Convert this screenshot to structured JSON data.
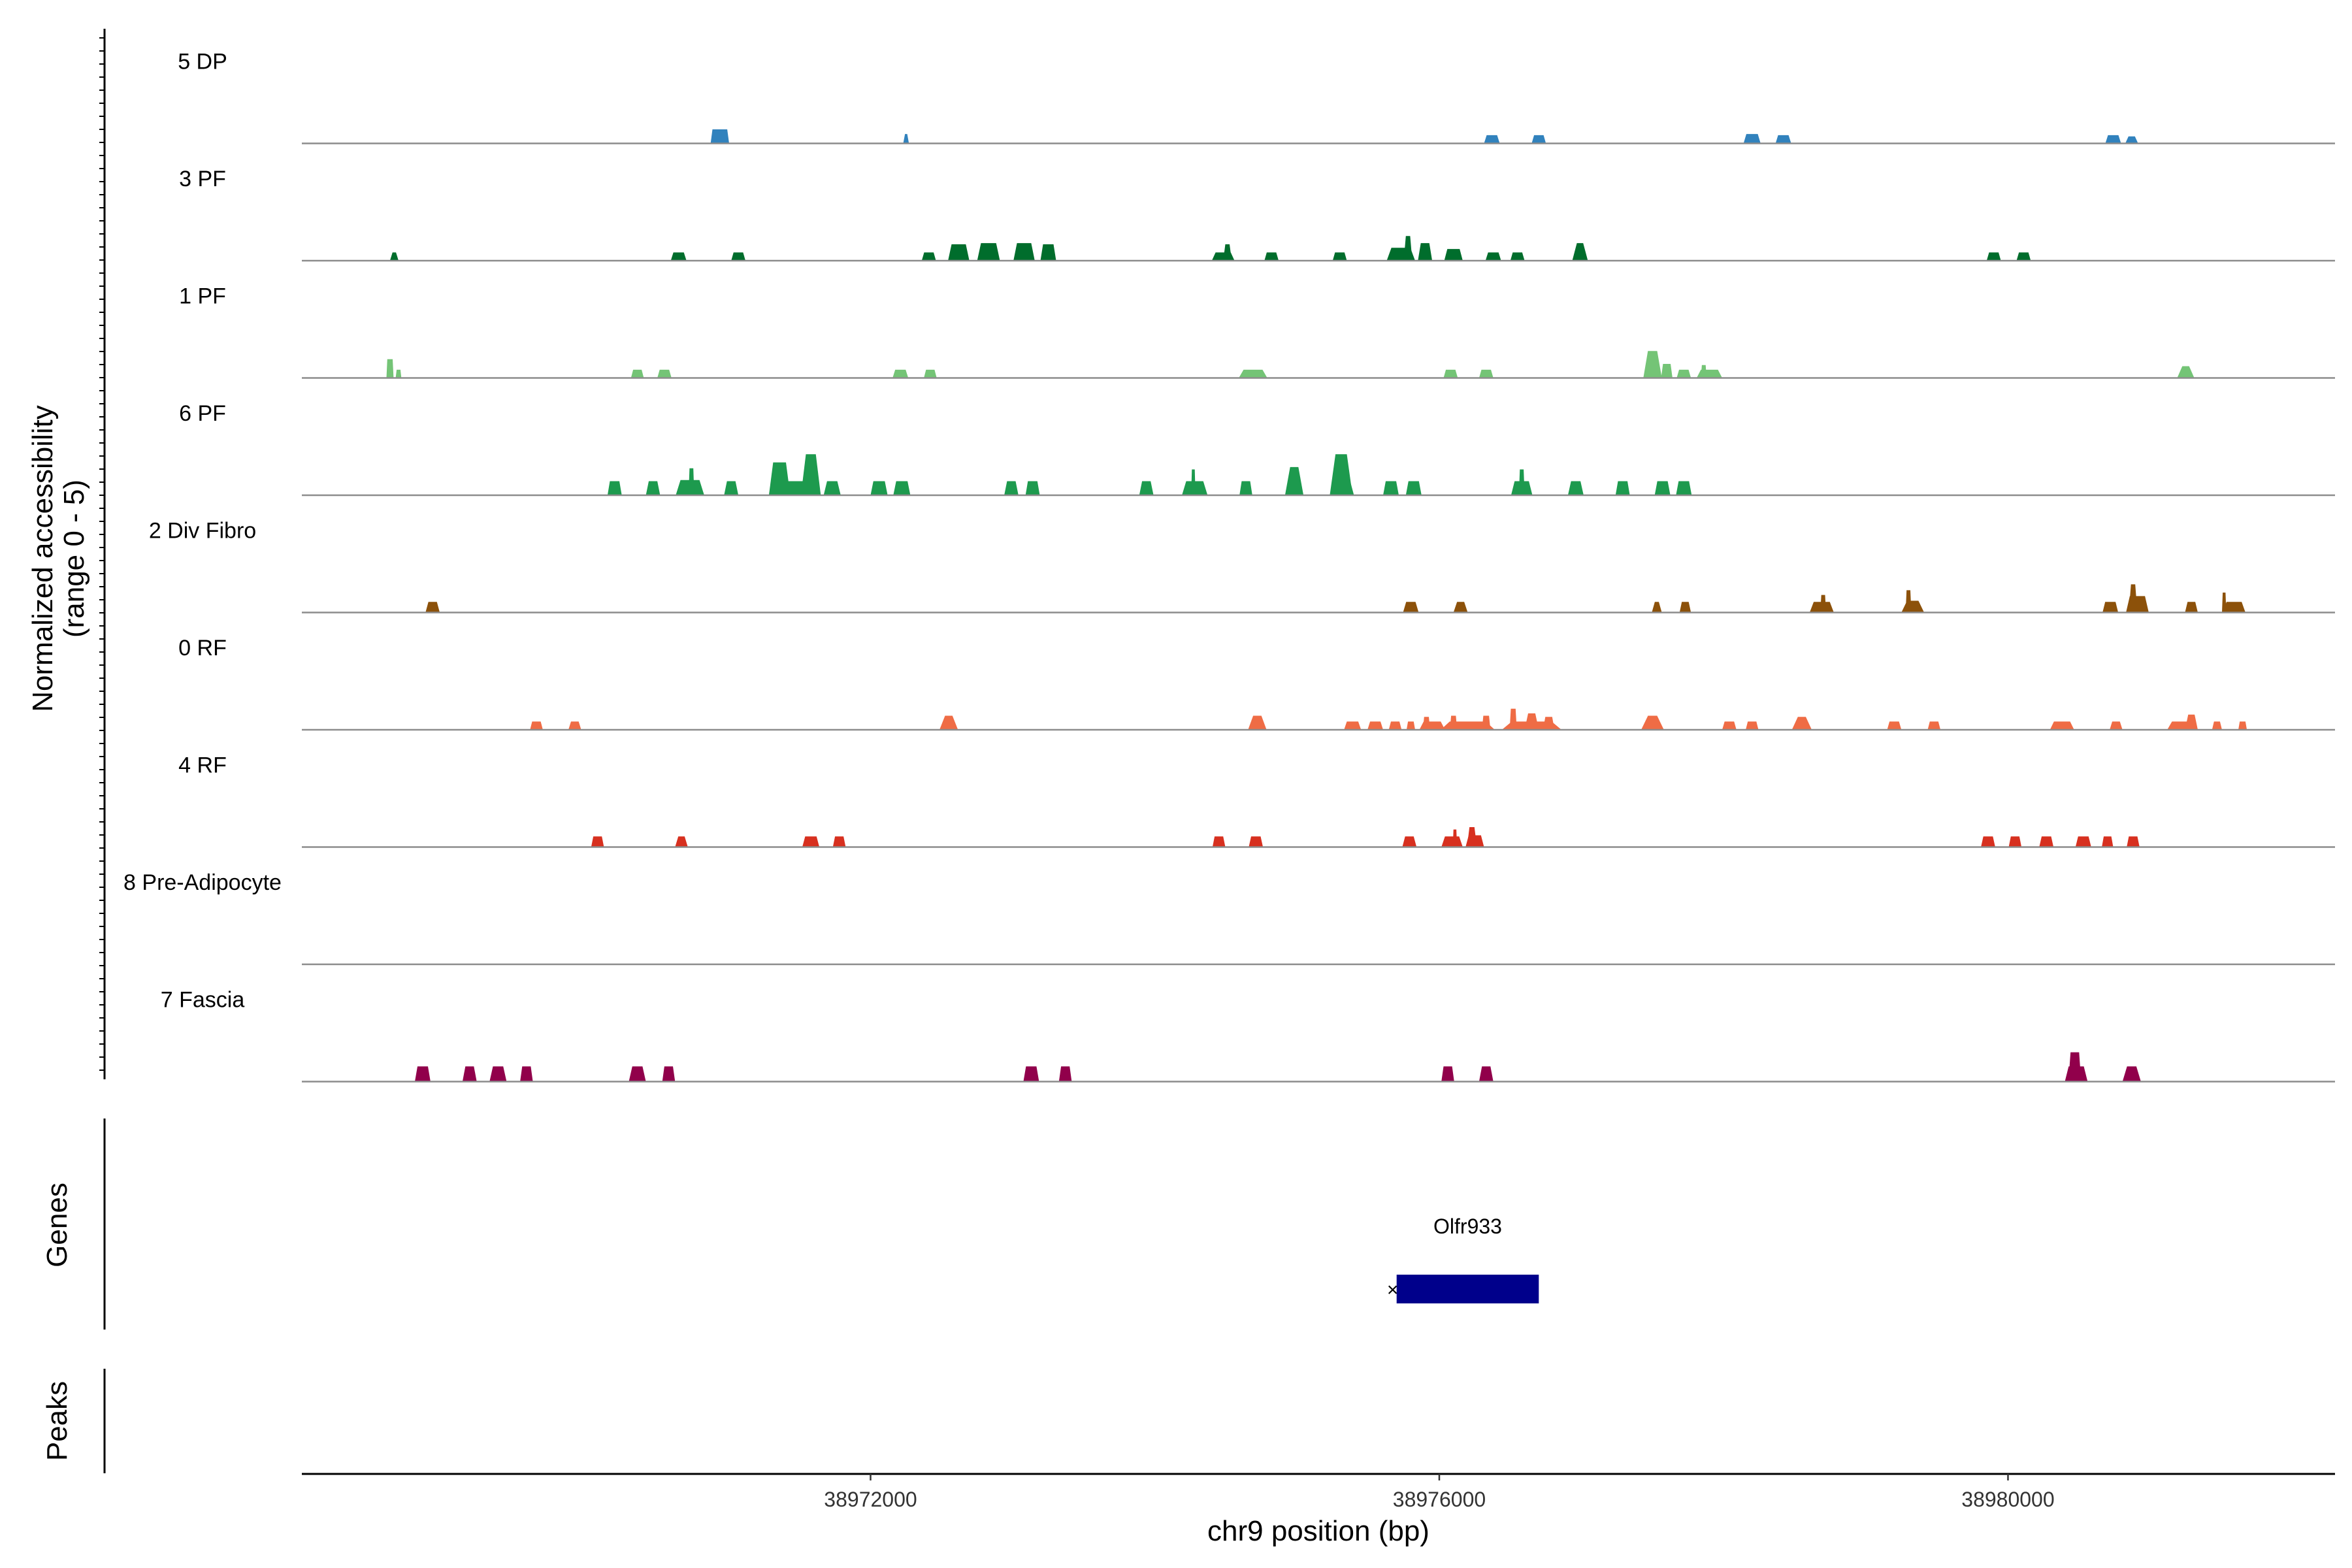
{
  "chart_data": {
    "type": "coverage",
    "x_axis": {
      "label": "chr9 position (bp)",
      "min": 38968000,
      "max": 38982300,
      "ticks": [
        38972000,
        38976000,
        38980000
      ],
      "tick_labels": [
        "38972000",
        "38976000",
        "38980000"
      ]
    },
    "y_axis": {
      "label_line1": "Normalized accessibility",
      "label_line2": "(range 0 - 5)",
      "range": [
        0,
        5
      ]
    },
    "tracks": [
      {
        "name": "5 DP",
        "color": "#3182bd",
        "peaks": [
          [
            38970940,
            130,
            0.6,
            5.0
          ],
          [
            38972250,
            40,
            0.4,
            0.9
          ],
          [
            38976370,
            110,
            0.35,
            3.0
          ],
          [
            38976700,
            100,
            0.35,
            3.0
          ],
          [
            38978200,
            120,
            0.4,
            3.0
          ],
          [
            38978420,
            110,
            0.35,
            3.0
          ],
          [
            38980740,
            110,
            0.35,
            3.0
          ],
          [
            38980870,
            90,
            0.3,
            2.0
          ]
        ]
      },
      {
        "name": "3 PF",
        "color": "#006d2c",
        "peaks": [
          [
            38968650,
            60,
            0.35,
            1.5
          ],
          [
            38970650,
            110,
            0.35,
            3.0
          ],
          [
            38971070,
            100,
            0.35,
            3.0
          ],
          [
            38972410,
            100,
            0.35,
            3.0
          ],
          [
            38972620,
            150,
            0.7,
            3.0
          ],
          [
            38972830,
            160,
            0.75,
            3.0
          ],
          [
            38973080,
            150,
            0.75,
            3.0
          ],
          [
            38973250,
            110,
            0.7,
            3.0
          ],
          [
            38974480,
            160,
            0.35,
            3.0
          ],
          [
            38974510,
            60,
            0.7,
            2.0
          ],
          [
            38974820,
            100,
            0.35,
            3.0
          ],
          [
            38975300,
            100,
            0.35,
            3.0
          ],
          [
            38975730,
            200,
            0.55,
            3.0
          ],
          [
            38975780,
            60,
            1.05,
            2.0
          ],
          [
            38975900,
            100,
            0.75,
            2.5
          ],
          [
            38976100,
            130,
            0.5,
            3.0
          ],
          [
            38976380,
            110,
            0.35,
            3.0
          ],
          [
            38976550,
            100,
            0.35,
            3.0
          ],
          [
            38976990,
            110,
            0.75,
            1.5
          ],
          [
            38979900,
            100,
            0.35,
            3.0
          ],
          [
            38980110,
            100,
            0.35,
            3.0
          ]
        ]
      },
      {
        "name": "1 PF",
        "color": "#74c476",
        "peaks": [
          [
            38968620,
            50,
            0.8,
            4.0
          ],
          [
            38968680,
            40,
            0.35,
            3.0
          ],
          [
            38970360,
            90,
            0.35,
            3.0
          ],
          [
            38970550,
            100,
            0.35,
            3.0
          ],
          [
            38972210,
            110,
            0.35,
            3.0
          ],
          [
            38972420,
            90,
            0.35,
            3.0
          ],
          [
            38974690,
            200,
            0.35,
            3.0
          ],
          [
            38976080,
            100,
            0.35,
            3.0
          ],
          [
            38976330,
            100,
            0.35,
            3.0
          ],
          [
            38977500,
            130,
            1.15,
            2.0
          ],
          [
            38977600,
            80,
            0.6,
            3.0
          ],
          [
            38977720,
            100,
            0.35,
            3.0
          ],
          [
            38977900,
            180,
            0.35,
            3.0
          ],
          [
            38977860,
            40,
            0.55,
            3.0
          ],
          [
            38981250,
            120,
            0.5,
            1.5
          ]
        ]
      },
      {
        "name": "6 PF",
        "color": "#1d9a4e",
        "peaks": [
          [
            38970200,
            100,
            0.6,
            3.0
          ],
          [
            38970470,
            100,
            0.6,
            2.5
          ],
          [
            38970730,
            200,
            0.65,
            3.0
          ],
          [
            38970740,
            40,
            1.15,
            3.0
          ],
          [
            38971020,
            100,
            0.6,
            2.5
          ],
          [
            38971360,
            150,
            1.4,
            2.5
          ],
          [
            38971580,
            140,
            1.75,
            2.0
          ],
          [
            38971480,
            260,
            0.6,
            3.0
          ],
          [
            38971730,
            120,
            0.6,
            2.5
          ],
          [
            38972060,
            120,
            0.6,
            3.0
          ],
          [
            38972220,
            120,
            0.6,
            3.0
          ],
          [
            38972990,
            100,
            0.6,
            2.5
          ],
          [
            38973140,
            100,
            0.6,
            3.0
          ],
          [
            38973940,
            100,
            0.6,
            2.5
          ],
          [
            38974280,
            180,
            0.6,
            3.0
          ],
          [
            38974270,
            30,
            1.1,
            3.0
          ],
          [
            38974640,
            90,
            0.6,
            3.0
          ],
          [
            38974980,
            130,
            1.2,
            1.8
          ],
          [
            38975310,
            160,
            1.75,
            2.0
          ],
          [
            38975320,
            160,
            0.6,
            3.0
          ],
          [
            38975660,
            110,
            0.6,
            3.0
          ],
          [
            38975820,
            110,
            0.6,
            3.0
          ],
          [
            38976580,
            150,
            0.6,
            3.0
          ],
          [
            38976580,
            40,
            1.1,
            3.0
          ],
          [
            38976960,
            110,
            0.6,
            2.5
          ],
          [
            38977290,
            100,
            0.6,
            3.0
          ],
          [
            38977570,
            110,
            0.6,
            3.0
          ],
          [
            38977720,
            110,
            0.6,
            3.0
          ]
        ]
      },
      {
        "name": "2 Div Fibro",
        "color": "#8c510a",
        "peaks": [
          [
            38968920,
            100,
            0.45,
            2.5
          ],
          [
            38975800,
            110,
            0.45,
            2.5
          ],
          [
            38976150,
            100,
            0.45,
            2.0
          ],
          [
            38977530,
            70,
            0.45,
            1.5
          ],
          [
            38977730,
            80,
            0.45,
            2.5
          ],
          [
            38978690,
            170,
            0.45,
            3.0
          ],
          [
            38978700,
            40,
            0.75,
            3.0
          ],
          [
            38979330,
            160,
            0.5,
            2.0
          ],
          [
            38979300,
            40,
            0.95,
            3.0
          ],
          [
            38980720,
            110,
            0.45,
            3.0
          ],
          [
            38980910,
            160,
            0.7,
            3.0
          ],
          [
            38980880,
            60,
            1.2,
            2.0
          ],
          [
            38981290,
            90,
            0.45,
            2.5
          ],
          [
            38981590,
            160,
            0.45,
            3.0
          ],
          [
            38981520,
            30,
            0.85,
            3.0
          ]
        ]
      },
      {
        "name": "0 RF",
        "color": "#ef6c45",
        "peaks": [
          [
            38969650,
            90,
            0.35,
            3.0
          ],
          [
            38969920,
            90,
            0.35,
            2.5
          ],
          [
            38972550,
            130,
            0.6,
            1.5
          ],
          [
            38974720,
            130,
            0.6,
            1.8
          ],
          [
            38975390,
            120,
            0.35,
            3.0
          ],
          [
            38975550,
            110,
            0.35,
            3.0
          ],
          [
            38975690,
            90,
            0.35,
            3.0
          ],
          [
            38975800,
            60,
            0.35,
            3.0
          ],
          [
            38975950,
            180,
            0.35,
            3.0
          ],
          [
            38975910,
            50,
            0.55,
            3.0
          ],
          [
            38976200,
            380,
            0.35,
            3.0
          ],
          [
            38976100,
            50,
            0.6,
            3.0
          ],
          [
            38976330,
            60,
            0.6,
            3.0
          ],
          [
            38976520,
            50,
            0.9,
            3.0
          ],
          [
            38976650,
            420,
            0.35,
            3.0
          ],
          [
            38976650,
            100,
            0.7,
            2.0
          ],
          [
            38976770,
            80,
            0.55,
            2.5
          ],
          [
            38977500,
            160,
            0.6,
            1.5
          ],
          [
            38978040,
            100,
            0.35,
            3.0
          ],
          [
            38978200,
            90,
            0.35,
            3.0
          ],
          [
            38978550,
            140,
            0.55,
            1.5
          ],
          [
            38979200,
            100,
            0.35,
            3.0
          ],
          [
            38979480,
            90,
            0.35,
            3.0
          ],
          [
            38980380,
            170,
            0.35,
            3.0
          ],
          [
            38980760,
            90,
            0.35,
            2.5
          ],
          [
            38981220,
            200,
            0.35,
            3.0
          ],
          [
            38981290,
            90,
            0.65,
            2.0
          ],
          [
            38981470,
            70,
            0.35,
            2.5
          ],
          [
            38981650,
            60,
            0.35,
            3.0
          ]
        ]
      },
      {
        "name": "4 RF",
        "color": "#d7301f",
        "peaks": [
          [
            38970080,
            90,
            0.45,
            3.0
          ],
          [
            38970670,
            90,
            0.45,
            2.0
          ],
          [
            38971580,
            120,
            0.45,
            3.0
          ],
          [
            38971780,
            90,
            0.45,
            3.0
          ],
          [
            38974450,
            90,
            0.45,
            3.0
          ],
          [
            38974710,
            100,
            0.45,
            3.0
          ],
          [
            38975790,
            100,
            0.45,
            2.5
          ],
          [
            38976090,
            150,
            0.45,
            3.0
          ],
          [
            38976110,
            30,
            0.75,
            3.0
          ],
          [
            38976250,
            130,
            0.5,
            3.0
          ],
          [
            38976230,
            70,
            0.85,
            2.0
          ],
          [
            38979860,
            100,
            0.45,
            3.0
          ],
          [
            38980050,
            90,
            0.45,
            3.0
          ],
          [
            38980270,
            100,
            0.45,
            3.0
          ],
          [
            38980530,
            110,
            0.45,
            3.0
          ],
          [
            38980700,
            80,
            0.45,
            3.0
          ],
          [
            38980880,
            90,
            0.45,
            3.0
          ]
        ]
      },
      {
        "name": "8 Pre-Adipocyte",
        "color": "#7a0177",
        "peaks": []
      },
      {
        "name": "7 Fascia",
        "color": "#91004b",
        "peaks": [
          [
            38968850,
            110,
            0.65,
            3.0
          ],
          [
            38969180,
            100,
            0.65,
            2.5
          ],
          [
            38969380,
            120,
            0.65,
            2.5
          ],
          [
            38969580,
            90,
            0.65,
            3.0
          ],
          [
            38970360,
            120,
            0.65,
            2.5
          ],
          [
            38970580,
            90,
            0.65,
            3.0
          ],
          [
            38973130,
            110,
            0.65,
            3.0
          ],
          [
            38973370,
            90,
            0.65,
            3.0
          ],
          [
            38976060,
            90,
            0.65,
            3.0
          ],
          [
            38976330,
            100,
            0.65,
            2.5
          ],
          [
            38980480,
            160,
            0.65,
            3.0
          ],
          [
            38980470,
            90,
            1.25,
            3.0
          ],
          [
            38980870,
            130,
            0.65,
            2.0
          ]
        ]
      }
    ],
    "genes_track": {
      "label": "Genes",
      "genes": [
        {
          "name": "Olfr933",
          "start": 38975700,
          "end": 38976700,
          "strand": "-",
          "color": "#00008b"
        }
      ]
    },
    "peaks_track": {
      "label": "Peaks"
    }
  }
}
